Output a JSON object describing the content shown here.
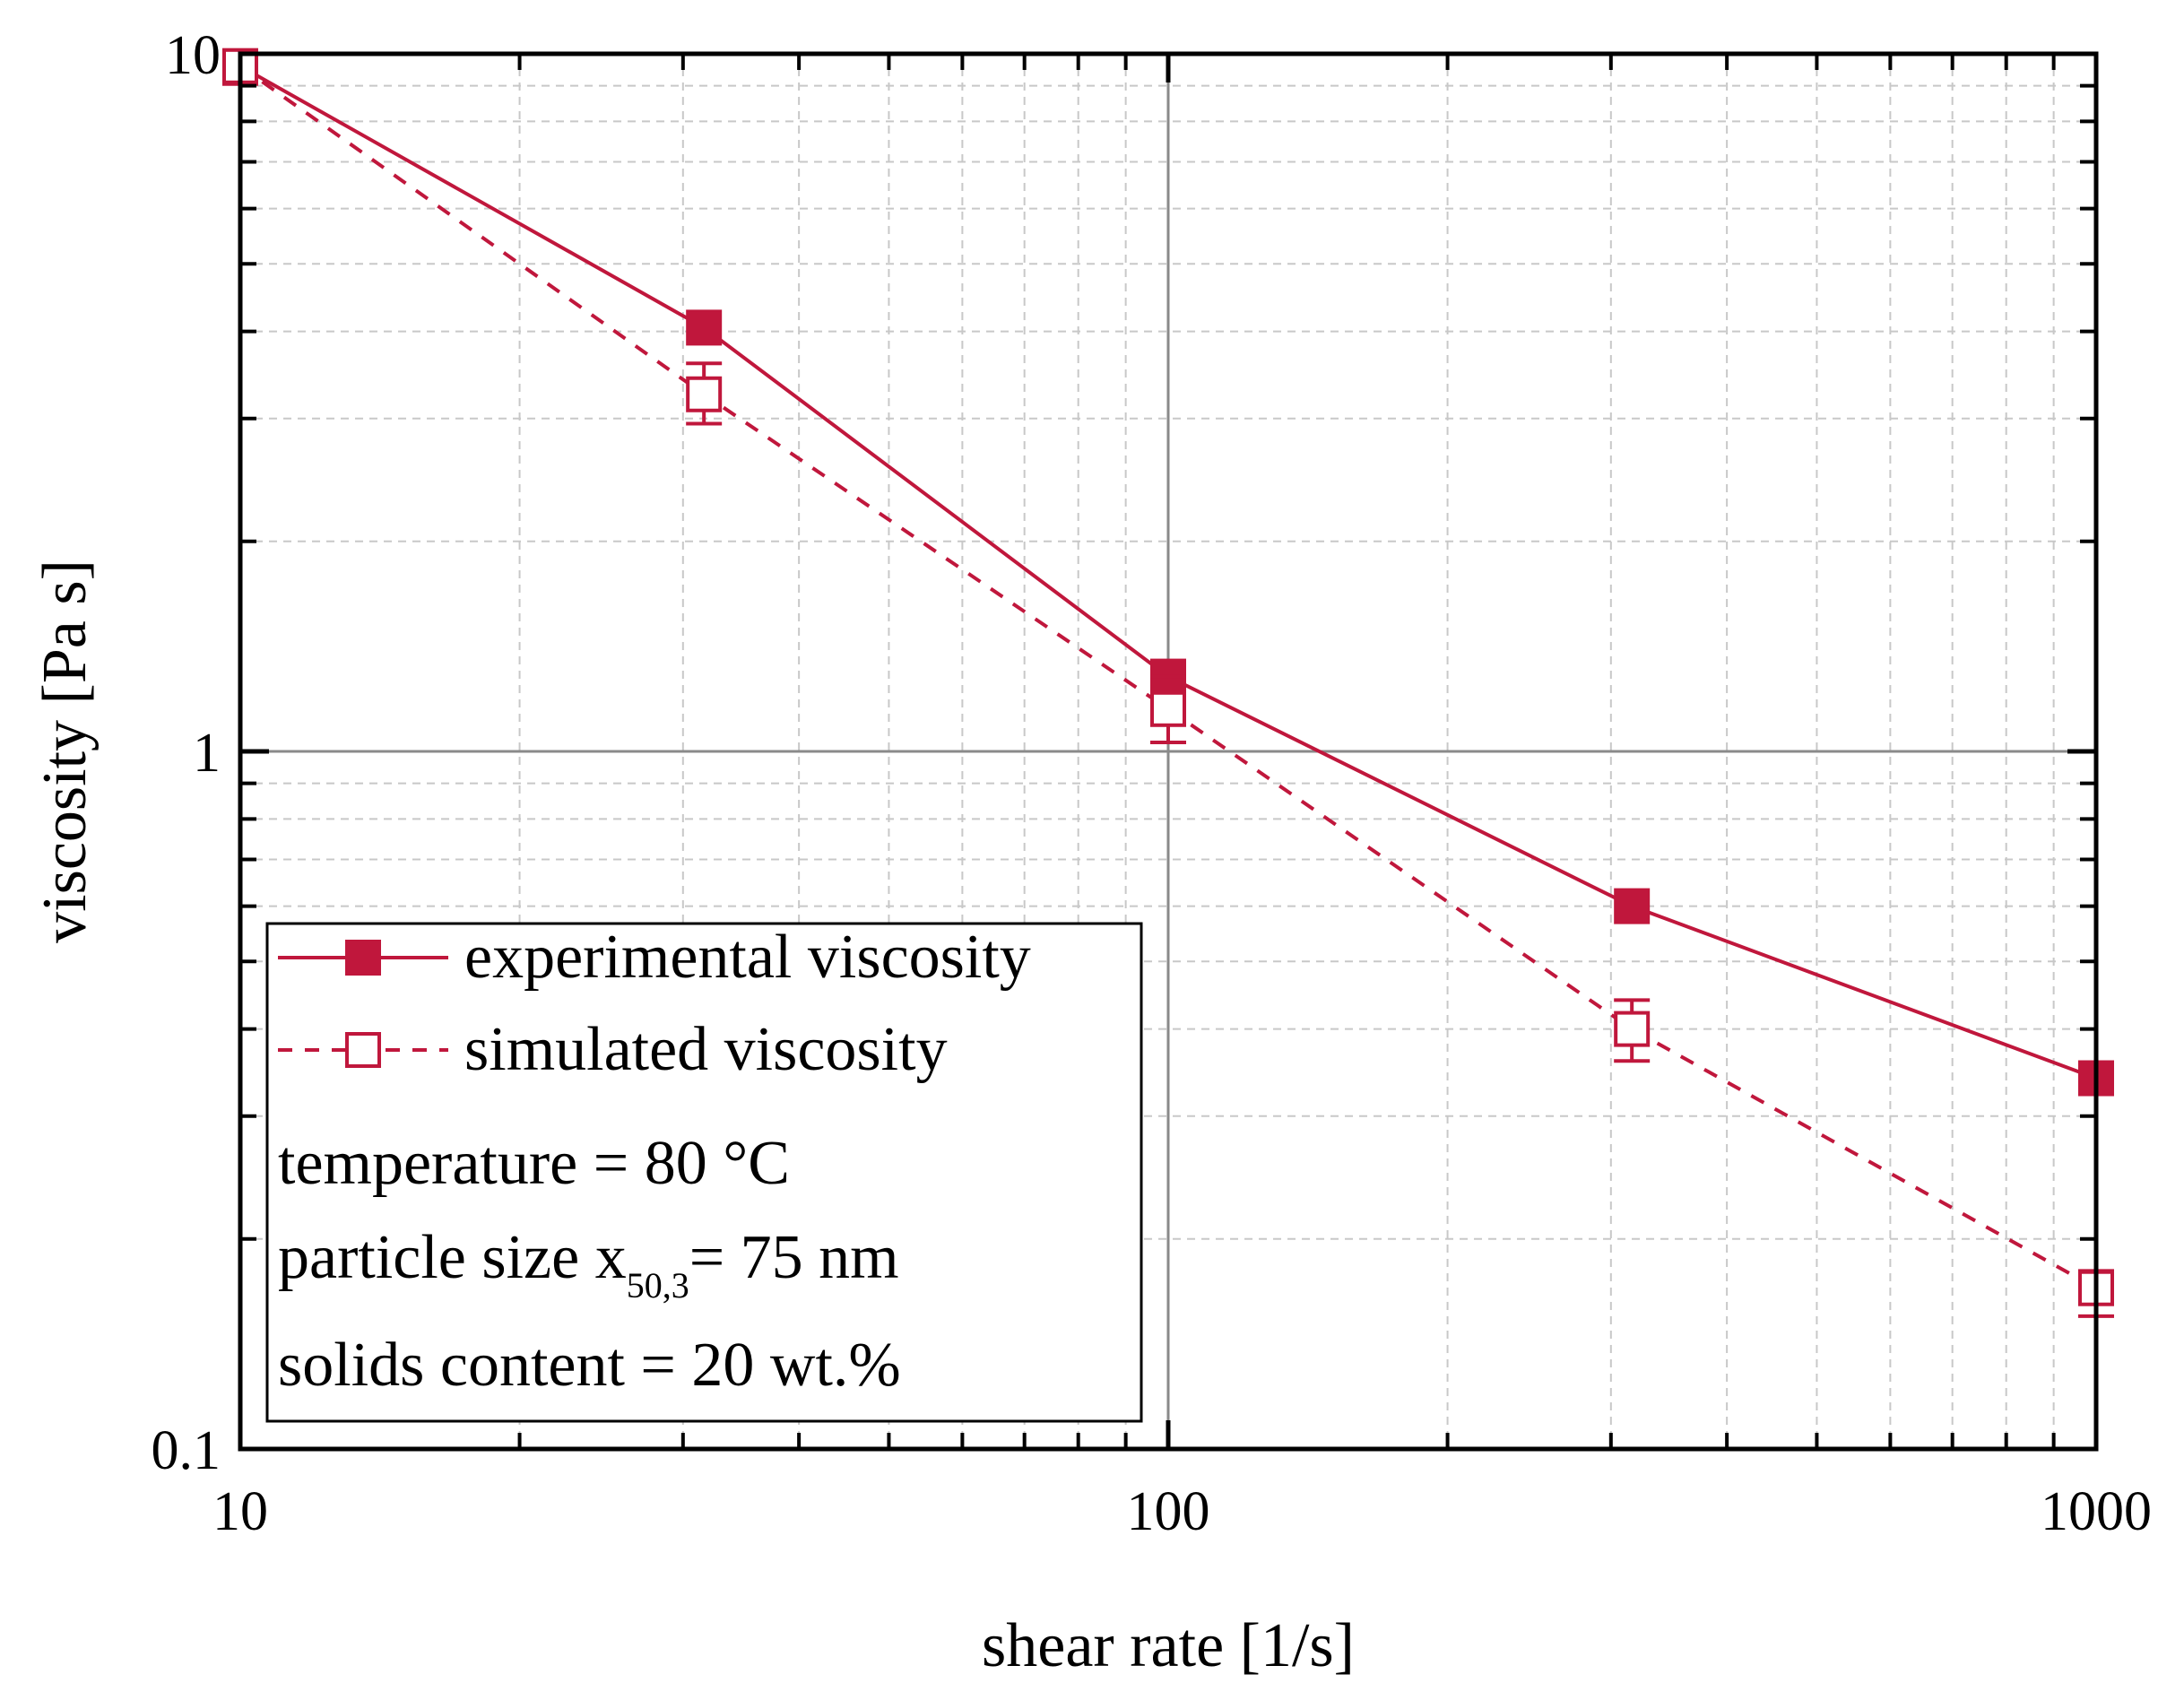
{
  "chart_data": {
    "type": "line",
    "xscale": "log",
    "yscale": "log",
    "xlim": [
      10,
      1000
    ],
    "ylim": [
      0.1,
      10
    ],
    "xlabel": "shear rate [1/s]",
    "ylabel": "viscosity [Pa s]",
    "x_ticks": [
      {
        "value": 10,
        "label": "10"
      },
      {
        "value": 100,
        "label": "100"
      },
      {
        "value": 1000,
        "label": "1000"
      }
    ],
    "y_ticks": [
      {
        "value": 0.1,
        "label": "0.1"
      },
      {
        "value": 1,
        "label": "1"
      },
      {
        "value": 10,
        "label": "10"
      }
    ],
    "grid": true,
    "legend_position": "bottom-left",
    "series": [
      {
        "name": "experimental viscosity",
        "style": "solid",
        "marker": "filled-square",
        "color": "#c0173c",
        "points": [
          {
            "x": 10,
            "y": 9.6
          },
          {
            "x": 31.6,
            "y": 4.05
          },
          {
            "x": 100,
            "y": 1.28
          },
          {
            "x": 316,
            "y": 0.6
          },
          {
            "x": 1000,
            "y": 0.34
          }
        ]
      },
      {
        "name": "simulated viscosity",
        "style": "dashed",
        "marker": "open-square",
        "color": "#c0173c",
        "points": [
          {
            "x": 10,
            "y": 9.6,
            "err_low": 9.05,
            "err_high": 10.0
          },
          {
            "x": 31.6,
            "y": 3.25,
            "err_low": 2.95,
            "err_high": 3.6
          },
          {
            "x": 100,
            "y": 1.15,
            "err_low": 1.03,
            "err_high": 1.28
          },
          {
            "x": 316,
            "y": 0.4,
            "err_low": 0.36,
            "err_high": 0.44
          },
          {
            "x": 1000,
            "y": 0.17,
            "err_low": 0.155,
            "err_high": 0.18
          }
        ]
      }
    ],
    "annotations": {
      "temperature": "temperature = 80 °C",
      "particle_size_prefix": "particle size x",
      "particle_size_subscript": "50,3",
      "particle_size_suffix": "= 75 nm",
      "solids": "solids content = 20 wt.%"
    }
  }
}
